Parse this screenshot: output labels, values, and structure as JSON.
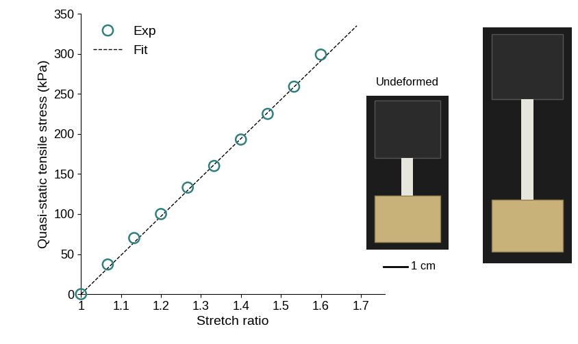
{
  "chart_data": {
    "type": "scatter",
    "x_label": "Stretch ratio",
    "y_label": "Quasi-static tensile stress (kPa)",
    "series": [
      {
        "name": "Exp",
        "type": "scatter",
        "color": "#2e8080",
        "marker": "o",
        "x": [
          1,
          1.067,
          1.133,
          1.2,
          1.267,
          1.333,
          1.4,
          1.467,
          1.533,
          1.6
        ],
        "values": [
          0,
          37,
          70,
          100,
          133,
          160,
          193,
          225,
          259,
          299
        ]
      },
      {
        "name": "Fit",
        "type": "line",
        "color": "#000000",
        "line_style": "dashed",
        "x": [
          1,
          1.69
        ],
        "values": [
          0,
          335
        ]
      }
    ],
    "xlim": [
      1,
      1.76
    ],
    "xticks": [
      1,
      1.1,
      1.2,
      1.3,
      1.4,
      1.5,
      1.6,
      1.7
    ],
    "ylim": [
      0,
      350
    ],
    "yticks": [
      0,
      50,
      100,
      150,
      200,
      250,
      300,
      350
    ],
    "legend": "upper left",
    "grid": false
  },
  "photos": {
    "label": "Undeformed",
    "scale_bar": "1 cm"
  }
}
